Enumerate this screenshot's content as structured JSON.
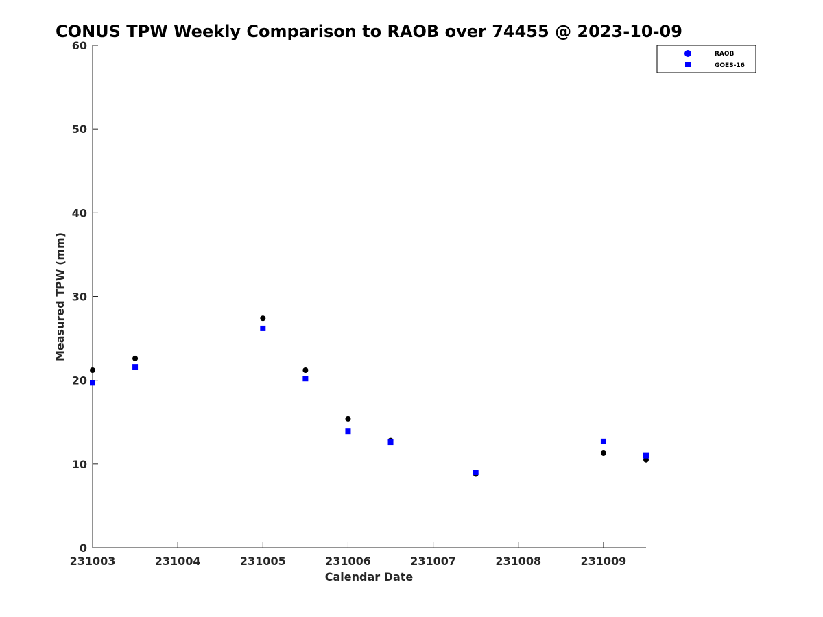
{
  "chart_data": {
    "type": "scatter",
    "title": "CONUS TPW Weekly Comparison to RAOB over 74455 @ 2023-10-09",
    "xlabel": "Calendar Date",
    "ylabel": "Measured TPW (mm)",
    "xlim": [
      0,
      6.5
    ],
    "ylim": [
      0,
      60
    ],
    "x_ticks": [
      0,
      1,
      2,
      3,
      4,
      5,
      6
    ],
    "x_tick_labels": [
      "231003",
      "231004",
      "231005",
      "231006",
      "231007",
      "231008",
      "231009"
    ],
    "y_ticks": [
      0,
      10,
      20,
      30,
      40,
      50,
      60
    ],
    "y_tick_labels": [
      "0",
      "10",
      "20",
      "30",
      "40",
      "50",
      "60"
    ],
    "legend_position": "top-right",
    "legend_entries": [
      "RAOB",
      "GOES-16"
    ],
    "series": [
      {
        "name": "RAOB",
        "marker": "circle",
        "color": "#000000",
        "legend_color": "#0000ff",
        "x": [
          0,
          0.5,
          2,
          2.5,
          3,
          3.5,
          4.5,
          6,
          6.5
        ],
        "values": [
          21.2,
          22.6,
          27.4,
          21.2,
          15.4,
          12.8,
          8.8,
          11.3,
          10.5
        ]
      },
      {
        "name": "GOES-16",
        "marker": "square",
        "color": "#0000ff",
        "legend_color": "#0000ff",
        "x": [
          0,
          0.5,
          2,
          2.5,
          3,
          3.5,
          4.5,
          6,
          6.5
        ],
        "values": [
          19.7,
          21.6,
          26.2,
          20.2,
          13.9,
          12.6,
          9.0,
          12.7,
          11.0
        ]
      }
    ]
  }
}
